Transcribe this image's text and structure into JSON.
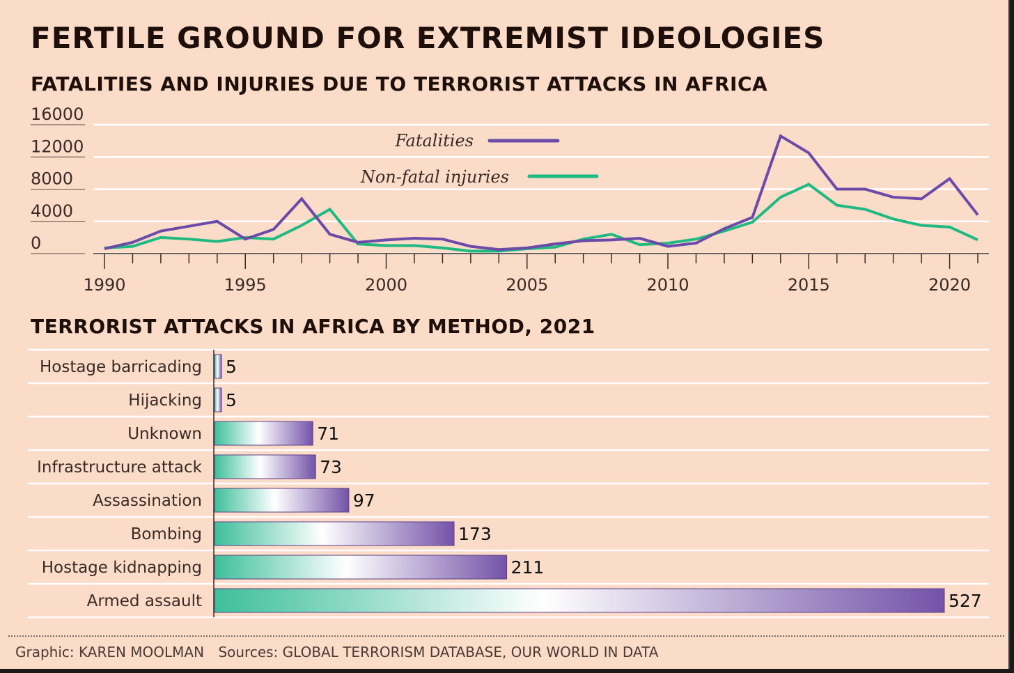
{
  "title": "FERTILE GROUND FOR EXTREMIST IDEOLOGIES",
  "colors": {
    "background": "#fbdcc9",
    "fatalities": "#6b4aa8",
    "injuries": "#1fb981",
    "bar_start": "#3ebf9a",
    "bar_end": "#7352a8"
  },
  "chart_data": [
    {
      "type": "line",
      "title": "FATALITIES AND INJURIES DUE TO TERRORIST ATTACKS IN AFRICA",
      "x": [
        1990,
        1991,
        1992,
        1993,
        1994,
        1995,
        1996,
        1997,
        1998,
        1999,
        2000,
        2001,
        2002,
        2003,
        2004,
        2005,
        2006,
        2007,
        2008,
        2009,
        2010,
        2011,
        2012,
        2013,
        2014,
        2015,
        2016,
        2017,
        2018,
        2019,
        2020,
        2021
      ],
      "ylim": [
        0,
        16000
      ],
      "yticks": [
        "16000",
        "12000",
        "8000",
        "4000",
        "0"
      ],
      "xticks": [
        "1990",
        "1995",
        "2000",
        "2005",
        "2010",
        "2015",
        "2020"
      ],
      "grid": true,
      "legend_position": "top-center",
      "series": [
        {
          "name": "Fatalities",
          "values": [
            600,
            1400,
            2800,
            3400,
            4000,
            1800,
            3000,
            6800,
            2400,
            1400,
            1700,
            1900,
            1800,
            900,
            500,
            700,
            1200,
            1600,
            1700,
            1900,
            900,
            1300,
            3100,
            4500,
            14600,
            12500,
            8000,
            8000,
            7000,
            6800,
            9300,
            4800
          ]
        },
        {
          "name": "Non-fatal injuries",
          "values": [
            700,
            900,
            2000,
            1800,
            1500,
            2000,
            1800,
            3500,
            5500,
            1200,
            1000,
            1000,
            700,
            300,
            300,
            600,
            800,
            1800,
            2400,
            1100,
            1300,
            1800,
            2800,
            3900,
            7000,
            8600,
            6000,
            5500,
            4300,
            3500,
            3300,
            1700
          ]
        }
      ]
    },
    {
      "type": "bar",
      "title": "TERRORIST ATTACKS IN AFRICA BY METHOD, 2021",
      "categories": [
        "Hostage barricading",
        "Hijacking",
        "Unknown",
        "Infrastructure attack",
        "Assassination",
        "Bombing",
        "Hostage kidnapping",
        "Armed assault"
      ],
      "values": [
        5,
        5,
        71,
        73,
        97,
        173,
        211,
        527
      ],
      "value_labels": [
        "5",
        "5",
        "71",
        "73",
        "97",
        "173",
        "211",
        "527"
      ],
      "xlim": [
        0,
        527
      ]
    }
  ],
  "footer": {
    "graphic": "Graphic: KAREN MOOLMAN",
    "sources": "Sources: GLOBAL TERRORISM DATABASE, OUR WORLD IN DATA"
  }
}
